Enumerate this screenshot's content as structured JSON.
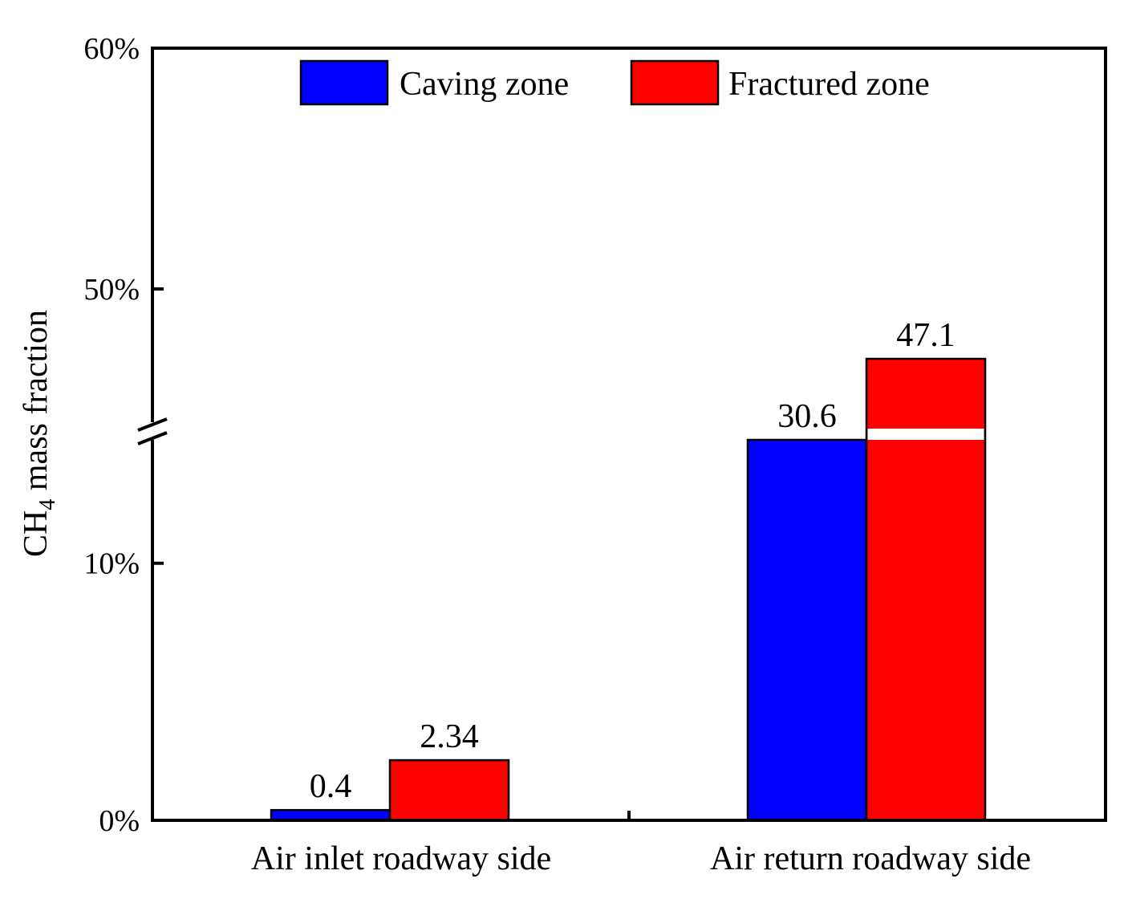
{
  "chart_data": {
    "type": "bar",
    "title": "",
    "xlabel": "",
    "ylabel": {
      "main": "CH",
      "subscript": "4",
      "rest": " mass fraction"
    },
    "categories": [
      "Air inlet roadway side",
      "Air return roadway side"
    ],
    "series": [
      {
        "name": "Caving zone",
        "color": "#0000FF",
        "values": [
          0.4,
          30.6
        ],
        "labels": [
          "0.4",
          "30.6"
        ]
      },
      {
        "name": "Fractured zone",
        "color": "#FF0000",
        "values": [
          2.34,
          47.1
        ],
        "labels": [
          "2.34",
          "47.1"
        ]
      }
    ],
    "y_axis_break": {
      "lower_range": [
        0,
        14.8
      ],
      "upper_range": [
        44.2,
        60
      ],
      "lower_ticks": [
        {
          "value": 0,
          "label": "0%"
        },
        {
          "value": 10,
          "label": "10%"
        }
      ],
      "upper_ticks": [
        {
          "value": 50,
          "label": "50%"
        },
        {
          "value": 60,
          "label": "60%"
        }
      ]
    },
    "legend": {
      "position": "top-center",
      "orientation": "horizontal"
    },
    "grid": false
  }
}
